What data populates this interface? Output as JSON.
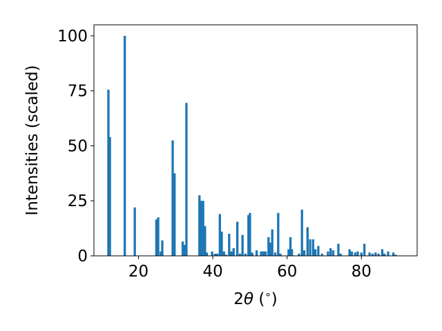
{
  "chart_data": {
    "type": "bar",
    "xlabel_parts": {
      "pre": "2",
      "theta": "θ",
      "post": " (",
      "deg": "∘",
      "end": ")"
    },
    "ylabel": "Intensities (scaled)",
    "xlim": [
      8,
      95
    ],
    "ylim": [
      0,
      105
    ],
    "xticks": [
      20,
      40,
      60,
      80
    ],
    "yticks": [
      0,
      25,
      50,
      75,
      100
    ],
    "bar_width_deg": 0.62,
    "bar_color": "#1f77b4",
    "bars": [
      {
        "x": 11.9,
        "y": 75.5
      },
      {
        "x": 12.3,
        "y": 54
      },
      {
        "x": 16.3,
        "y": 100
      },
      {
        "x": 19.0,
        "y": 22
      },
      {
        "x": 24.8,
        "y": 16.5
      },
      {
        "x": 25.3,
        "y": 17.5
      },
      {
        "x": 26.4,
        "y": 7
      },
      {
        "x": 26.0,
        "y": 2
      },
      {
        "x": 29.2,
        "y": 52.5
      },
      {
        "x": 29.7,
        "y": 37.5
      },
      {
        "x": 31.9,
        "y": 6.5
      },
      {
        "x": 32.4,
        "y": 5
      },
      {
        "x": 32.9,
        "y": 69.5
      },
      {
        "x": 36.4,
        "y": 27.5
      },
      {
        "x": 36.9,
        "y": 25
      },
      {
        "x": 37.4,
        "y": 25
      },
      {
        "x": 37.9,
        "y": 13.5
      },
      {
        "x": 38.4,
        "y": 1.5
      },
      {
        "x": 39.8,
        "y": 2
      },
      {
        "x": 40.6,
        "y": 1
      },
      {
        "x": 41.2,
        "y": 1
      },
      {
        "x": 41.9,
        "y": 19
      },
      {
        "x": 42.4,
        "y": 11
      },
      {
        "x": 43.0,
        "y": 2
      },
      {
        "x": 43.6,
        "y": 0.5
      },
      {
        "x": 44.4,
        "y": 10
      },
      {
        "x": 45.0,
        "y": 2
      },
      {
        "x": 45.6,
        "y": 3.5
      },
      {
        "x": 46.6,
        "y": 15.5
      },
      {
        "x": 47.3,
        "y": 1
      },
      {
        "x": 48.0,
        "y": 9.5
      },
      {
        "x": 48.8,
        "y": 1
      },
      {
        "x": 49.6,
        "y": 18.5
      },
      {
        "x": 50.0,
        "y": 19.5
      },
      {
        "x": 50.6,
        "y": 1.5
      },
      {
        "x": 51.8,
        "y": 2.5
      },
      {
        "x": 53.0,
        "y": 2
      },
      {
        "x": 53.6,
        "y": 2
      },
      {
        "x": 54.2,
        "y": 2
      },
      {
        "x": 55.0,
        "y": 8.5
      },
      {
        "x": 55.4,
        "y": 6
      },
      {
        "x": 56.0,
        "y": 12
      },
      {
        "x": 56.8,
        "y": 1.5
      },
      {
        "x": 57.6,
        "y": 19.5
      },
      {
        "x": 58.2,
        "y": 1
      },
      {
        "x": 60.4,
        "y": 3
      },
      {
        "x": 60.9,
        "y": 8.5
      },
      {
        "x": 61.3,
        "y": 3
      },
      {
        "x": 63.2,
        "y": 1
      },
      {
        "x": 64.0,
        "y": 21
      },
      {
        "x": 64.6,
        "y": 2.5
      },
      {
        "x": 65.5,
        "y": 13
      },
      {
        "x": 66.2,
        "y": 7.5
      },
      {
        "x": 67.0,
        "y": 7.5
      },
      {
        "x": 67.6,
        "y": 3
      },
      {
        "x": 68.4,
        "y": 4.5
      },
      {
        "x": 69.4,
        "y": 1
      },
      {
        "x": 71.0,
        "y": 2
      },
      {
        "x": 71.7,
        "y": 3.5
      },
      {
        "x": 72.4,
        "y": 2.5
      },
      {
        "x": 73.8,
        "y": 5.5
      },
      {
        "x": 74.4,
        "y": 1
      },
      {
        "x": 76.8,
        "y": 3
      },
      {
        "x": 77.4,
        "y": 2
      },
      {
        "x": 78.3,
        "y": 1.5
      },
      {
        "x": 79.0,
        "y": 2
      },
      {
        "x": 80.0,
        "y": 1.5
      },
      {
        "x": 80.8,
        "y": 5.5
      },
      {
        "x": 82.2,
        "y": 1.5
      },
      {
        "x": 83.0,
        "y": 1
      },
      {
        "x": 83.8,
        "y": 1.5
      },
      {
        "x": 84.6,
        "y": 1
      },
      {
        "x": 85.6,
        "y": 3
      },
      {
        "x": 86.2,
        "y": 1
      },
      {
        "x": 87.2,
        "y": 2
      },
      {
        "x": 88.6,
        "y": 1.5
      },
      {
        "x": 89.2,
        "y": 0.5
      }
    ]
  }
}
